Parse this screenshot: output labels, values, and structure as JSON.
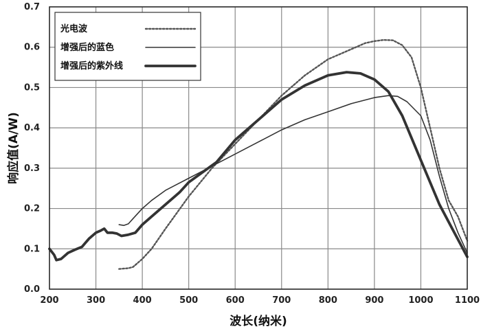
{
  "chart_data": {
    "type": "line",
    "title": "",
    "xlabel": "波长(纳米)",
    "ylabel": "响应值(A/W)",
    "xlim": [
      200,
      1100
    ],
    "ylim": [
      0.0,
      0.7
    ],
    "grid": true,
    "legend_position": "top-left",
    "x_ticks": [
      "200",
      "300",
      "400",
      "500",
      "600",
      "700",
      "800",
      "900",
      "1000",
      "1100"
    ],
    "y_ticks": [
      "0.0",
      "0.1",
      "0.2",
      "0.3",
      "0.4",
      "0.5",
      "0.6",
      "0.7"
    ],
    "series": [
      {
        "name": "光电波",
        "style": "dotted",
        "color": "#555555",
        "points": [
          [
            350,
            0.05
          ],
          [
            370,
            0.052
          ],
          [
            380,
            0.055
          ],
          [
            400,
            0.075
          ],
          [
            420,
            0.1
          ],
          [
            450,
            0.15
          ],
          [
            500,
            0.23
          ],
          [
            550,
            0.3
          ],
          [
            600,
            0.36
          ],
          [
            650,
            0.42
          ],
          [
            700,
            0.48
          ],
          [
            750,
            0.53
          ],
          [
            800,
            0.57
          ],
          [
            850,
            0.595
          ],
          [
            880,
            0.61
          ],
          [
            900,
            0.615
          ],
          [
            920,
            0.618
          ],
          [
            940,
            0.617
          ],
          [
            960,
            0.605
          ],
          [
            980,
            0.575
          ],
          [
            1000,
            0.5
          ],
          [
            1020,
            0.4
          ],
          [
            1040,
            0.3
          ],
          [
            1060,
            0.22
          ],
          [
            1080,
            0.18
          ],
          [
            1100,
            0.12
          ]
        ]
      },
      {
        "name": "增强后的蓝色",
        "style": "thin",
        "color": "#333333",
        "points": [
          [
            350,
            0.16
          ],
          [
            360,
            0.158
          ],
          [
            370,
            0.162
          ],
          [
            380,
            0.175
          ],
          [
            400,
            0.2
          ],
          [
            420,
            0.22
          ],
          [
            450,
            0.245
          ],
          [
            500,
            0.275
          ],
          [
            550,
            0.305
          ],
          [
            600,
            0.335
          ],
          [
            650,
            0.365
          ],
          [
            700,
            0.395
          ],
          [
            750,
            0.42
          ],
          [
            800,
            0.44
          ],
          [
            850,
            0.46
          ],
          [
            900,
            0.475
          ],
          [
            930,
            0.48
          ],
          [
            950,
            0.478
          ],
          [
            970,
            0.465
          ],
          [
            1000,
            0.43
          ],
          [
            1020,
            0.37
          ],
          [
            1040,
            0.28
          ],
          [
            1060,
            0.2
          ],
          [
            1080,
            0.14
          ],
          [
            1100,
            0.09
          ]
        ]
      },
      {
        "name": "增强后的紫外线",
        "style": "thick",
        "color": "#333333",
        "points": [
          [
            200,
            0.1
          ],
          [
            210,
            0.085
          ],
          [
            215,
            0.072
          ],
          [
            225,
            0.075
          ],
          [
            240,
            0.09
          ],
          [
            255,
            0.098
          ],
          [
            270,
            0.105
          ],
          [
            285,
            0.125
          ],
          [
            300,
            0.14
          ],
          [
            310,
            0.145
          ],
          [
            318,
            0.15
          ],
          [
            325,
            0.14
          ],
          [
            335,
            0.14
          ],
          [
            345,
            0.138
          ],
          [
            355,
            0.132
          ],
          [
            370,
            0.135
          ],
          [
            385,
            0.14
          ],
          [
            400,
            0.16
          ],
          [
            420,
            0.18
          ],
          [
            450,
            0.21
          ],
          [
            480,
            0.24
          ],
          [
            500,
            0.265
          ],
          [
            530,
            0.29
          ],
          [
            560,
            0.315
          ],
          [
            600,
            0.37
          ],
          [
            650,
            0.42
          ],
          [
            700,
            0.47
          ],
          [
            750,
            0.505
          ],
          [
            800,
            0.53
          ],
          [
            840,
            0.538
          ],
          [
            870,
            0.535
          ],
          [
            900,
            0.52
          ],
          [
            930,
            0.49
          ],
          [
            960,
            0.43
          ],
          [
            1000,
            0.32
          ],
          [
            1040,
            0.21
          ],
          [
            1070,
            0.145
          ],
          [
            1100,
            0.08
          ]
        ]
      }
    ]
  }
}
